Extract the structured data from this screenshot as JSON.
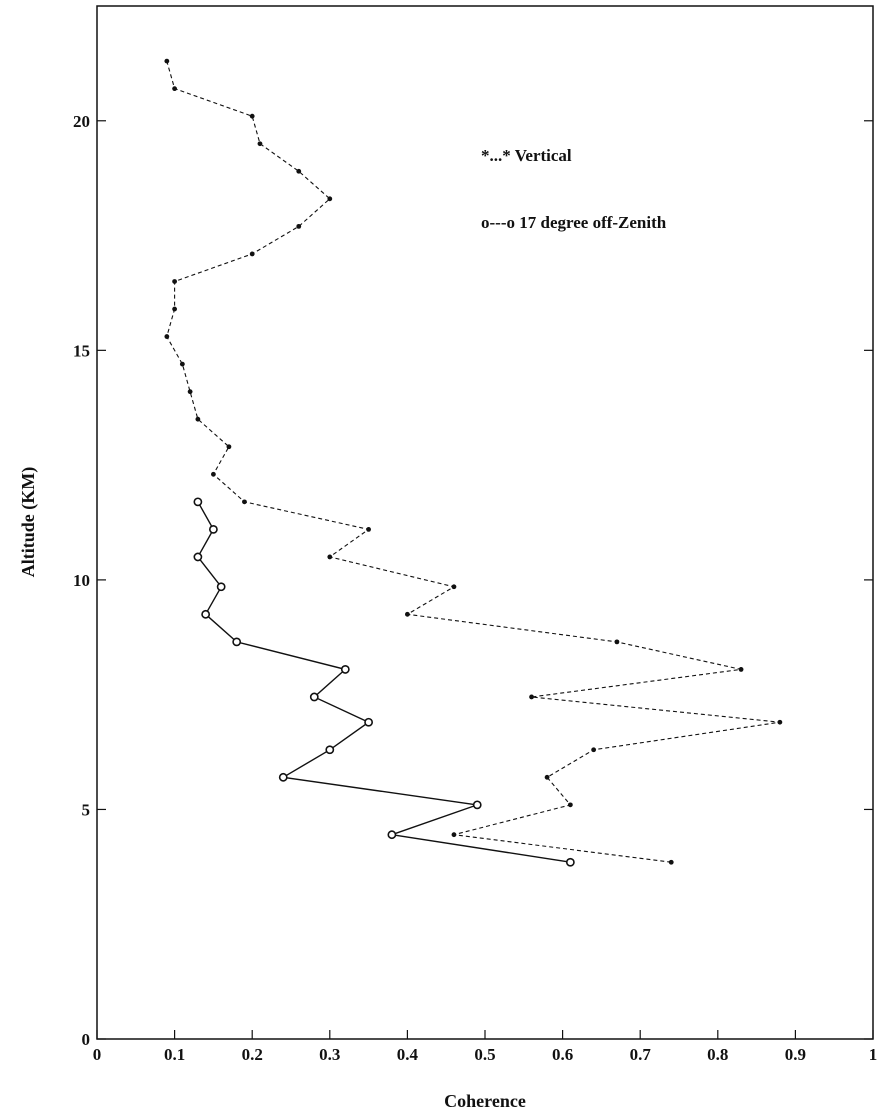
{
  "chart_data": {
    "type": "line",
    "title": "",
    "xlabel": "Coherence",
    "ylabel": "Altitude (KM)",
    "xlim": [
      0,
      1
    ],
    "ylim": [
      0,
      22.5
    ],
    "xticks": [
      0,
      0.1,
      0.2,
      0.3,
      0.4,
      0.5,
      0.6,
      0.7,
      0.8,
      0.9,
      1
    ],
    "xtick_labels": [
      "0",
      "0.1",
      "0.2",
      "0.3",
      "0.4",
      "0.5",
      "0.6",
      "0.7",
      "0.8",
      "0.9",
      "1"
    ],
    "yticks": [
      0,
      5,
      10,
      15,
      20
    ],
    "ytick_labels": [
      "0",
      "5",
      "10",
      "15",
      "20"
    ],
    "grid": false,
    "legend_position": "upper-right",
    "series": [
      {
        "legend_label": "*...* Vertical",
        "line_style": "dashed",
        "marker": "dot",
        "color": "#111111",
        "points": [
          {
            "x": 0.74,
            "y": 3.85
          },
          {
            "x": 0.46,
            "y": 4.45
          },
          {
            "x": 0.61,
            "y": 5.1
          },
          {
            "x": 0.58,
            "y": 5.7
          },
          {
            "x": 0.64,
            "y": 6.3
          },
          {
            "x": 0.88,
            "y": 6.9
          },
          {
            "x": 0.56,
            "y": 7.45
          },
          {
            "x": 0.83,
            "y": 8.05
          },
          {
            "x": 0.67,
            "y": 8.65
          },
          {
            "x": 0.4,
            "y": 9.25
          },
          {
            "x": 0.46,
            "y": 9.85
          },
          {
            "x": 0.3,
            "y": 10.5
          },
          {
            "x": 0.35,
            "y": 11.1
          },
          {
            "x": 0.19,
            "y": 11.7
          },
          {
            "x": 0.15,
            "y": 12.3
          },
          {
            "x": 0.17,
            "y": 12.9
          },
          {
            "x": 0.13,
            "y": 13.5
          },
          {
            "x": 0.12,
            "y": 14.1
          },
          {
            "x": 0.11,
            "y": 14.7
          },
          {
            "x": 0.09,
            "y": 15.3
          },
          {
            "x": 0.1,
            "y": 15.9
          },
          {
            "x": 0.1,
            "y": 16.5
          },
          {
            "x": 0.2,
            "y": 17.1
          },
          {
            "x": 0.26,
            "y": 17.7
          },
          {
            "x": 0.3,
            "y": 18.3
          },
          {
            "x": 0.26,
            "y": 18.9
          },
          {
            "x": 0.21,
            "y": 19.5
          },
          {
            "x": 0.2,
            "y": 20.1
          },
          {
            "x": 0.1,
            "y": 20.7
          },
          {
            "x": 0.09,
            "y": 21.3
          }
        ]
      },
      {
        "legend_label": "o---o 17 degree off-Zenith",
        "line_style": "solid",
        "marker": "open-circle",
        "color": "#111111",
        "points": [
          {
            "x": 0.61,
            "y": 3.85
          },
          {
            "x": 0.38,
            "y": 4.45
          },
          {
            "x": 0.49,
            "y": 5.1
          },
          {
            "x": 0.24,
            "y": 5.7
          },
          {
            "x": 0.3,
            "y": 6.3
          },
          {
            "x": 0.35,
            "y": 6.9
          },
          {
            "x": 0.28,
            "y": 7.45
          },
          {
            "x": 0.32,
            "y": 8.05
          },
          {
            "x": 0.18,
            "y": 8.65
          },
          {
            "x": 0.14,
            "y": 9.25
          },
          {
            "x": 0.16,
            "y": 9.85
          },
          {
            "x": 0.13,
            "y": 10.5
          },
          {
            "x": 0.15,
            "y": 11.1
          },
          {
            "x": 0.13,
            "y": 11.7
          }
        ]
      }
    ]
  }
}
